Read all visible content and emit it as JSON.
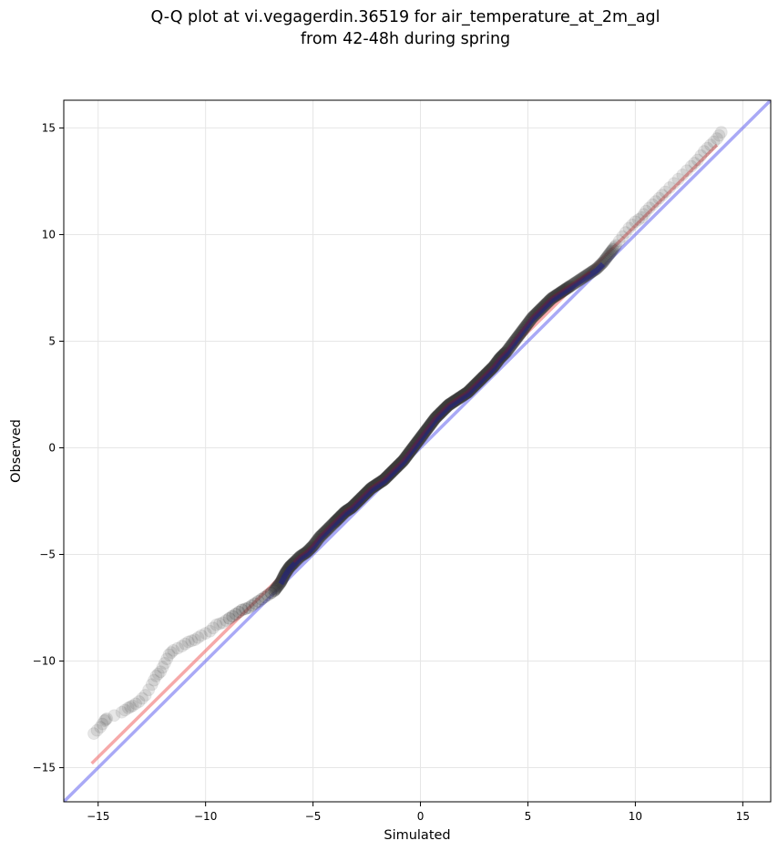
{
  "chart_data": {
    "type": "scatter",
    "title_line1": "Q-Q plot at vi.vegagerdin.36519 for air_temperature_at_2m_agl",
    "title_line2": "from 42-48h during spring",
    "xlabel": "Simulated",
    "ylabel": "Observed",
    "xlim": [
      -16.6,
      16.3
    ],
    "ylim": [
      -16.6,
      16.3
    ],
    "xticks": [
      -15,
      -10,
      -5,
      0,
      5,
      10,
      15
    ],
    "yticks": [
      -15,
      -10,
      -5,
      0,
      5,
      10,
      15
    ],
    "xtick_labels": [
      "−15",
      "−10",
      "−5",
      "0",
      "5",
      "10",
      "15"
    ],
    "ytick_labels": [
      "−15",
      "−10",
      "−5",
      "0",
      "5",
      "10",
      "15"
    ],
    "grid": true,
    "colors": {
      "points": "#3a3a3a",
      "identity_line": "#6f6ff0",
      "fit_line": "#f07070",
      "central_band": "#1e1e8c",
      "central_band_red": "#8c1e1e"
    },
    "identity_line": {
      "x": [
        -16.6,
        16.3
      ],
      "y": [
        -16.6,
        16.3
      ]
    },
    "fit_line": {
      "x": [
        -15.3,
        13.8
      ],
      "y": [
        -14.8,
        14.2
      ]
    },
    "quantile_points": {
      "x": [
        -15.2,
        -14.9,
        -14.7,
        -14.6,
        -13.9,
        -13.6,
        -13.4,
        -13.1,
        -12.8,
        -12.5,
        -12.3,
        -12.1,
        -11.9,
        -11.7,
        -11.5,
        -11.1,
        -10.8,
        -10.5,
        -10.2,
        -9.8,
        -9.5,
        -9.2,
        -8.9,
        -8.6,
        -8.3,
        -8.0,
        -7.7,
        -7.4,
        -7.1,
        -6.8,
        -6.5,
        -6.3,
        -6.1,
        -5.9,
        -5.6,
        -5.3,
        -5.0,
        -4.7,
        -4.4,
        -4.1,
        -3.8,
        -3.5,
        -3.2,
        -2.9,
        -2.6,
        -2.3,
        -2.0,
        -1.7,
        -1.4,
        -1.1,
        -0.8,
        -0.5,
        -0.2,
        0.1,
        0.4,
        0.7,
        1.0,
        1.3,
        1.6,
        1.9,
        2.2,
        2.5,
        2.8,
        3.1,
        3.4,
        3.7,
        4.0,
        4.3,
        4.6,
        4.9,
        5.2,
        5.5,
        5.8,
        6.1,
        6.4,
        6.7,
        7.0,
        7.3,
        7.6,
        7.9,
        8.2,
        8.5,
        8.8,
        9.1,
        9.4,
        9.7,
        10.0,
        10.3,
        10.5,
        10.8,
        11.1,
        11.4,
        11.8,
        12.2,
        12.6,
        12.9,
        13.2,
        13.5,
        13.8,
        14.0
      ],
      "y": [
        -13.4,
        -13.1,
        -12.8,
        -12.7,
        -12.4,
        -12.2,
        -12.1,
        -11.9,
        -11.6,
        -11.1,
        -10.7,
        -10.5,
        -10.1,
        -9.7,
        -9.5,
        -9.3,
        -9.1,
        -9.0,
        -8.8,
        -8.6,
        -8.3,
        -8.2,
        -8.0,
        -7.8,
        -7.6,
        -7.5,
        -7.3,
        -7.1,
        -6.9,
        -6.7,
        -6.3,
        -5.9,
        -5.6,
        -5.4,
        -5.1,
        -4.9,
        -4.6,
        -4.2,
        -3.9,
        -3.6,
        -3.3,
        -3.0,
        -2.8,
        -2.5,
        -2.2,
        -1.9,
        -1.7,
        -1.5,
        -1.2,
        -0.9,
        -0.6,
        -0.2,
        0.2,
        0.6,
        1.0,
        1.4,
        1.7,
        2.0,
        2.2,
        2.4,
        2.6,
        2.9,
        3.2,
        3.5,
        3.8,
        4.2,
        4.5,
        4.9,
        5.3,
        5.7,
        6.1,
        6.4,
        6.7,
        7.0,
        7.2,
        7.4,
        7.6,
        7.8,
        8.0,
        8.2,
        8.4,
        8.7,
        9.1,
        9.5,
        9.9,
        10.3,
        10.6,
        10.8,
        11.1,
        11.4,
        11.7,
        12.0,
        12.4,
        12.8,
        13.2,
        13.5,
        13.9,
        14.2,
        14.5,
        14.8
      ]
    }
  }
}
